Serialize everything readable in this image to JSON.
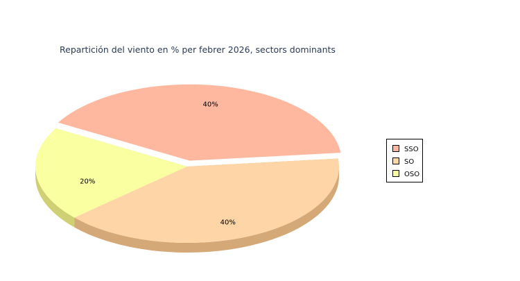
{
  "chart_data": {
    "type": "pie",
    "title": "Repartición del viento en % per febrer 2026, sectors dominants",
    "three_d": true,
    "exploded": "SSO",
    "legend_position": "right",
    "slices": [
      {
        "label": "SSO",
        "value": 40,
        "display": "40%",
        "color": "#FFB8A0",
        "side_color": "#D4876F"
      },
      {
        "label": "SO",
        "value": 40,
        "display": "40%",
        "color": "#FDD5A6",
        "side_color": "#D4A877"
      },
      {
        "label": "OSO",
        "value": 20,
        "display": "20%",
        "color": "#FAFFA2",
        "side_color": "#CFD074"
      }
    ]
  }
}
